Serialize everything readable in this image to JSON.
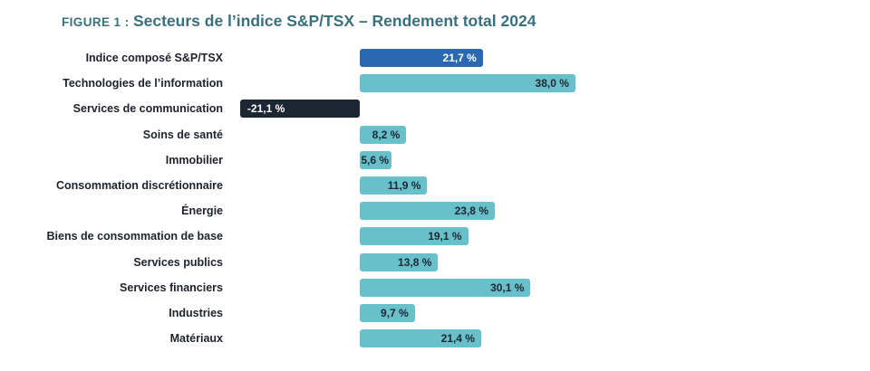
{
  "figure": {
    "label": "FIGURE 1 :",
    "title": "Secteurs de l’indice S&P/TSX – Rendement total 2024"
  },
  "chart_data": {
    "type": "bar",
    "orientation": "horizontal",
    "title": "FIGURE 1 : Secteurs de l’indice S&P/TSX – Rendement total 2024",
    "unit": "%",
    "xlim": [
      -24,
      40
    ],
    "grid": false,
    "legend": false,
    "categories": [
      "Indice composé S&P/TSX",
      "Technologies de l’information",
      "Services de communication",
      "Soins de santé",
      "Immobilier",
      "Consommation discrétionnaire",
      "Énergie",
      "Biens de consommation de base",
      "Services publics",
      "Services financiers",
      "Industries",
      "Matériaux"
    ],
    "values": [
      21.7,
      38.0,
      -21.1,
      8.2,
      5.6,
      11.9,
      23.8,
      19.1,
      13.8,
      30.1,
      9.7,
      21.4
    ],
    "value_labels": [
      "21,7 %",
      "38,0 %",
      "-21,1 %",
      "8,2 %",
      "5,6 %",
      "11,9 %",
      "23,8 %",
      "19,1 %",
      "13,8 %",
      "30,1 %",
      "9,7 %",
      "21,4 %"
    ],
    "bar_roles": [
      "composite",
      "sector",
      "negative",
      "sector",
      "sector",
      "sector",
      "sector",
      "sector",
      "sector",
      "sector",
      "sector",
      "sector"
    ],
    "colors": {
      "composite_bar": "#2b68b2",
      "composite_text": "#ffffff",
      "sector_bar": "#67c0ca",
      "sector_text": "#1d2733",
      "negative_bar": "#1d2733",
      "negative_text": "#ffffff",
      "title": "#38707d",
      "label_text": "#1e222a",
      "background": "#ffffff"
    }
  }
}
